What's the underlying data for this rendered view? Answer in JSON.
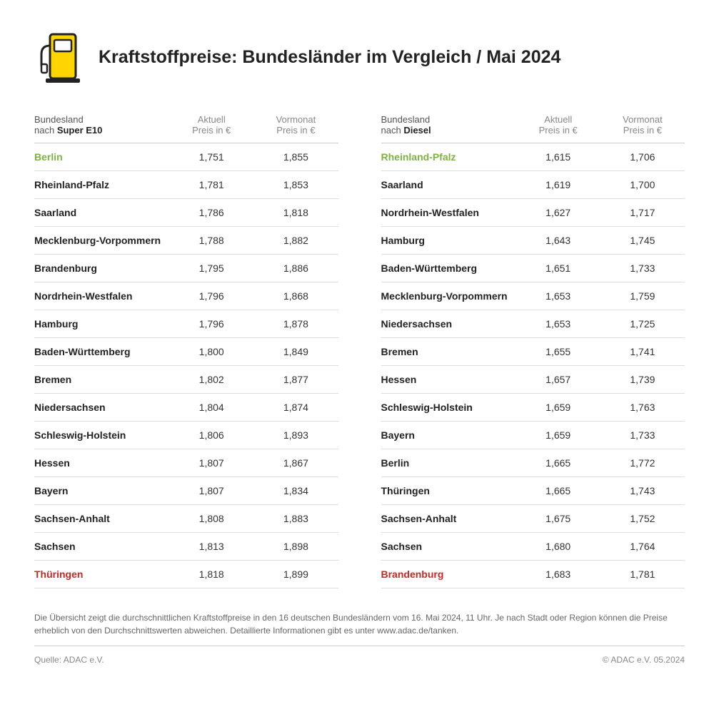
{
  "title": "Kraftstoffpreise: Bundesländer im Vergleich / Mai 2024",
  "headers": {
    "state_label": "Bundesland",
    "state_prefix": "nach ",
    "current": "Aktuell",
    "previous": "Vormonat",
    "price_unit": "Preis in €"
  },
  "colors": {
    "accent_yellow": "#ffd500",
    "highlight_green": "#7cb342",
    "highlight_red": "#c62828",
    "text_dark": "#222",
    "text_muted": "#888",
    "border": "#ccc"
  },
  "tables": [
    {
      "fuel": "Super E10",
      "rows": [
        {
          "state": "Berlin",
          "current": "1,751",
          "previous": "1,855",
          "hl": "green"
        },
        {
          "state": "Rheinland-Pfalz",
          "current": "1,781",
          "previous": "1,853"
        },
        {
          "state": "Saarland",
          "current": "1,786",
          "previous": "1,818"
        },
        {
          "state": "Mecklenburg-Vorpommern",
          "current": "1,788",
          "previous": "1,882"
        },
        {
          "state": "Brandenburg",
          "current": "1,795",
          "previous": "1,886"
        },
        {
          "state": "Nordrhein-Westfalen",
          "current": "1,796",
          "previous": "1,868"
        },
        {
          "state": "Hamburg",
          "current": "1,796",
          "previous": "1,878"
        },
        {
          "state": "Baden-Württemberg",
          "current": "1,800",
          "previous": "1,849"
        },
        {
          "state": "Bremen",
          "current": "1,802",
          "previous": "1,877"
        },
        {
          "state": "Niedersachsen",
          "current": "1,804",
          "previous": "1,874"
        },
        {
          "state": "Schleswig-Holstein",
          "current": "1,806",
          "previous": "1,893"
        },
        {
          "state": "Hessen",
          "current": "1,807",
          "previous": "1,867"
        },
        {
          "state": "Bayern",
          "current": "1,807",
          "previous": "1,834"
        },
        {
          "state": "Sachsen-Anhalt",
          "current": "1,808",
          "previous": "1,883"
        },
        {
          "state": "Sachsen",
          "current": "1,813",
          "previous": "1,898"
        },
        {
          "state": "Thüringen",
          "current": "1,818",
          "previous": "1,899",
          "hl": "red"
        }
      ]
    },
    {
      "fuel": "Diesel",
      "rows": [
        {
          "state": "Rheinland-Pfalz",
          "current": "1,615",
          "previous": "1,706",
          "hl": "green"
        },
        {
          "state": "Saarland",
          "current": "1,619",
          "previous": "1,700"
        },
        {
          "state": "Nordrhein-Westfalen",
          "current": "1,627",
          "previous": "1,717"
        },
        {
          "state": "Hamburg",
          "current": "1,643",
          "previous": "1,745"
        },
        {
          "state": "Baden-Württemberg",
          "current": "1,651",
          "previous": "1,733"
        },
        {
          "state": "Mecklenburg-Vorpommern",
          "current": "1,653",
          "previous": "1,759"
        },
        {
          "state": "Niedersachsen",
          "current": "1,653",
          "previous": "1,725"
        },
        {
          "state": "Bremen",
          "current": "1,655",
          "previous": "1,741"
        },
        {
          "state": "Hessen",
          "current": "1,657",
          "previous": "1,739"
        },
        {
          "state": "Schleswig-Holstein",
          "current": "1,659",
          "previous": "1,763"
        },
        {
          "state": "Bayern",
          "current": "1,659",
          "previous": "1,733"
        },
        {
          "state": "Berlin",
          "current": "1,665",
          "previous": "1,772"
        },
        {
          "state": "Thüringen",
          "current": "1,665",
          "previous": "1,743"
        },
        {
          "state": "Sachsen-Anhalt",
          "current": "1,675",
          "previous": "1,752"
        },
        {
          "state": "Sachsen",
          "current": "1,680",
          "previous": "1,764"
        },
        {
          "state": "Brandenburg",
          "current": "1,683",
          "previous": "1,781",
          "hl": "red"
        }
      ]
    }
  ],
  "note": "Die Übersicht zeigt die durchschnittlichen Kraftstoffpreise in den 16 deutschen Bundesländern vom 16. Mai 2024, 11 Uhr. Je nach Stadt oder Region können die Preise erheblich von den Durchschnittswerten abweichen. Detaillierte Informationen gibt es unter www.adac.de/tanken.",
  "source": "Quelle: ADAC e.V.",
  "copyright": "© ADAC e.V. 05.2024"
}
